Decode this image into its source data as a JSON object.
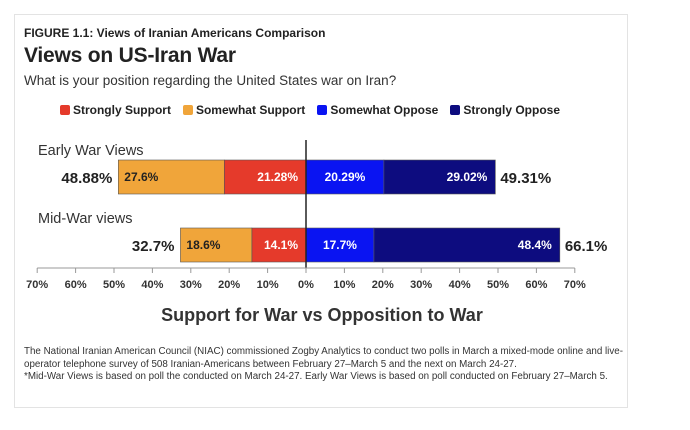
{
  "figure_label": "FIGURE 1.1: Views of Iranian Americans Comparison",
  "title": "Views on US-Iran War",
  "subtitle": "What is your position regarding the United States war on Iran?",
  "colors": {
    "Strongly Support": "#e53a2b",
    "Somewhat Support": "#f0a53a",
    "Somewhat Oppose": "#0a14f2",
    "Strongly Oppose": "#0d0c7f"
  },
  "chart_data": {
    "type": "bar",
    "orientation": "horizontal-diverging",
    "xlabel": "Support for War vs Opposition to War",
    "xlim": [
      -70,
      70
    ],
    "x_ticks": [
      "70%",
      "60%",
      "50%",
      "40%",
      "30%",
      "20%",
      "10%",
      "0%",
      "10%",
      "20%",
      "30%",
      "40%",
      "50%",
      "60%",
      "70%"
    ],
    "legend_placement": "top-center",
    "legend": [
      "Strongly Support",
      "Somewhat Support",
      "Somewhat Oppose",
      "Strongly Oppose"
    ],
    "categories": [
      "Early War Views",
      "Mid-War views"
    ],
    "series": [
      {
        "name": "Strongly Support",
        "side": "support",
        "values": [
          21.28,
          14.1
        ],
        "labels": [
          "21.28%",
          "14.1%"
        ]
      },
      {
        "name": "Somewhat Support",
        "side": "support",
        "values": [
          27.6,
          18.6
        ],
        "labels": [
          "27.6%",
          "18.6%"
        ]
      },
      {
        "name": "Somewhat Oppose",
        "side": "oppose",
        "values": [
          20.29,
          17.7
        ],
        "labels": [
          "20.29%",
          "17.7%"
        ]
      },
      {
        "name": "Strongly Oppose",
        "side": "oppose",
        "values": [
          29.02,
          48.4
        ],
        "labels": [
          "29.02%",
          "48.4%"
        ]
      }
    ],
    "totals_support": [
      "48.88%",
      "32.7%"
    ],
    "totals_oppose": [
      "49.31%",
      "66.1%"
    ]
  },
  "note_lines": [
    "The National Iranian American Council (NIAC) commissioned Zogby Analytics to conduct two polls in March a mixed-mode online and live-operator telephone survey of 508 Iranian-Americans between February 27–March 5 and the next on March 24-27.",
    "*Mid-War Views is based on poll the conducted on March 24-27. Early War Views is based on poll conducted on February 27–March 5."
  ]
}
